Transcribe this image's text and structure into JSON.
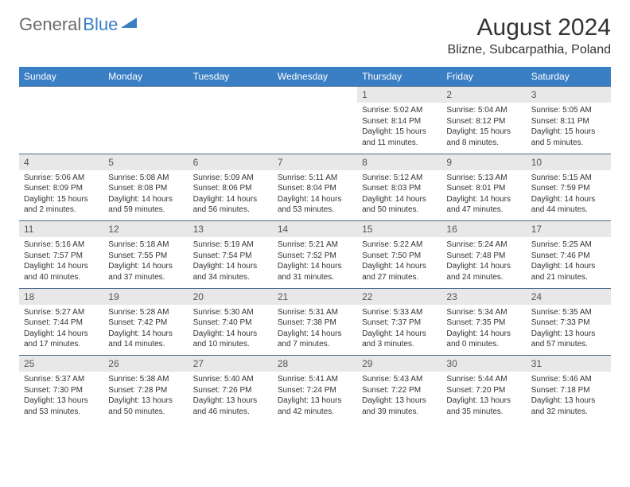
{
  "brand": {
    "part1": "General",
    "part2": "Blue"
  },
  "title": "August 2024",
  "location": "Blizne, Subcarpathia, Poland",
  "colors": {
    "header_bg": "#3a7fc4",
    "header_text": "#ffffff",
    "daynum_bg": "#e8e8e8",
    "border": "#4a6a8a",
    "logo_gray": "#6b6b6b",
    "logo_blue": "#3a7fc4"
  },
  "day_headers": [
    "Sunday",
    "Monday",
    "Tuesday",
    "Wednesday",
    "Thursday",
    "Friday",
    "Saturday"
  ],
  "weeks": [
    {
      "nums": [
        "",
        "",
        "",
        "",
        "1",
        "2",
        "3"
      ],
      "details": [
        "",
        "",
        "",
        "",
        "Sunrise: 5:02 AM\nSunset: 8:14 PM\nDaylight: 15 hours and 11 minutes.",
        "Sunrise: 5:04 AM\nSunset: 8:12 PM\nDaylight: 15 hours and 8 minutes.",
        "Sunrise: 5:05 AM\nSunset: 8:11 PM\nDaylight: 15 hours and 5 minutes."
      ]
    },
    {
      "nums": [
        "4",
        "5",
        "6",
        "7",
        "8",
        "9",
        "10"
      ],
      "details": [
        "Sunrise: 5:06 AM\nSunset: 8:09 PM\nDaylight: 15 hours and 2 minutes.",
        "Sunrise: 5:08 AM\nSunset: 8:08 PM\nDaylight: 14 hours and 59 minutes.",
        "Sunrise: 5:09 AM\nSunset: 8:06 PM\nDaylight: 14 hours and 56 minutes.",
        "Sunrise: 5:11 AM\nSunset: 8:04 PM\nDaylight: 14 hours and 53 minutes.",
        "Sunrise: 5:12 AM\nSunset: 8:03 PM\nDaylight: 14 hours and 50 minutes.",
        "Sunrise: 5:13 AM\nSunset: 8:01 PM\nDaylight: 14 hours and 47 minutes.",
        "Sunrise: 5:15 AM\nSunset: 7:59 PM\nDaylight: 14 hours and 44 minutes."
      ]
    },
    {
      "nums": [
        "11",
        "12",
        "13",
        "14",
        "15",
        "16",
        "17"
      ],
      "details": [
        "Sunrise: 5:16 AM\nSunset: 7:57 PM\nDaylight: 14 hours and 40 minutes.",
        "Sunrise: 5:18 AM\nSunset: 7:55 PM\nDaylight: 14 hours and 37 minutes.",
        "Sunrise: 5:19 AM\nSunset: 7:54 PM\nDaylight: 14 hours and 34 minutes.",
        "Sunrise: 5:21 AM\nSunset: 7:52 PM\nDaylight: 14 hours and 31 minutes.",
        "Sunrise: 5:22 AM\nSunset: 7:50 PM\nDaylight: 14 hours and 27 minutes.",
        "Sunrise: 5:24 AM\nSunset: 7:48 PM\nDaylight: 14 hours and 24 minutes.",
        "Sunrise: 5:25 AM\nSunset: 7:46 PM\nDaylight: 14 hours and 21 minutes."
      ]
    },
    {
      "nums": [
        "18",
        "19",
        "20",
        "21",
        "22",
        "23",
        "24"
      ],
      "details": [
        "Sunrise: 5:27 AM\nSunset: 7:44 PM\nDaylight: 14 hours and 17 minutes.",
        "Sunrise: 5:28 AM\nSunset: 7:42 PM\nDaylight: 14 hours and 14 minutes.",
        "Sunrise: 5:30 AM\nSunset: 7:40 PM\nDaylight: 14 hours and 10 minutes.",
        "Sunrise: 5:31 AM\nSunset: 7:38 PM\nDaylight: 14 hours and 7 minutes.",
        "Sunrise: 5:33 AM\nSunset: 7:37 PM\nDaylight: 14 hours and 3 minutes.",
        "Sunrise: 5:34 AM\nSunset: 7:35 PM\nDaylight: 14 hours and 0 minutes.",
        "Sunrise: 5:35 AM\nSunset: 7:33 PM\nDaylight: 13 hours and 57 minutes."
      ]
    },
    {
      "nums": [
        "25",
        "26",
        "27",
        "28",
        "29",
        "30",
        "31"
      ],
      "details": [
        "Sunrise: 5:37 AM\nSunset: 7:30 PM\nDaylight: 13 hours and 53 minutes.",
        "Sunrise: 5:38 AM\nSunset: 7:28 PM\nDaylight: 13 hours and 50 minutes.",
        "Sunrise: 5:40 AM\nSunset: 7:26 PM\nDaylight: 13 hours and 46 minutes.",
        "Sunrise: 5:41 AM\nSunset: 7:24 PM\nDaylight: 13 hours and 42 minutes.",
        "Sunrise: 5:43 AM\nSunset: 7:22 PM\nDaylight: 13 hours and 39 minutes.",
        "Sunrise: 5:44 AM\nSunset: 7:20 PM\nDaylight: 13 hours and 35 minutes.",
        "Sunrise: 5:46 AM\nSunset: 7:18 PM\nDaylight: 13 hours and 32 minutes."
      ]
    }
  ]
}
